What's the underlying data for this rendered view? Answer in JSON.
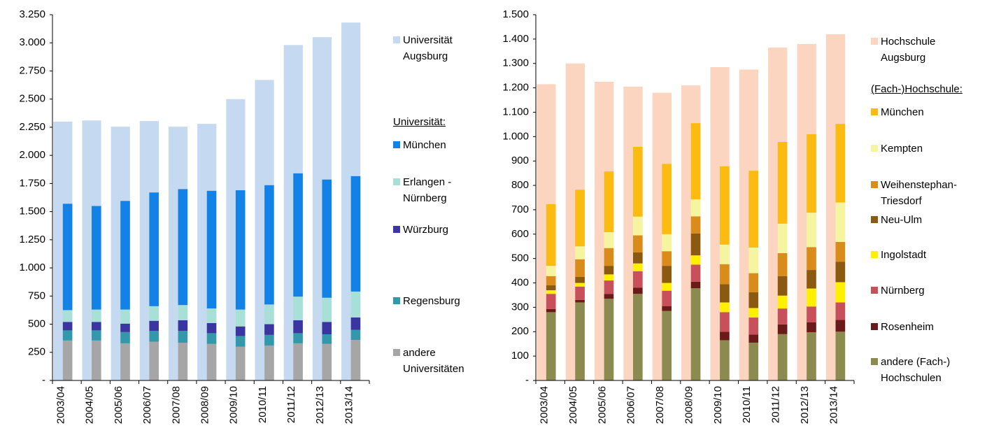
{
  "chart_data": [
    {
      "type": "bar",
      "categories": [
        "2003/04",
        "2004/05",
        "2005/06",
        "2006/07",
        "2007/08",
        "2008/09",
        "2009/10",
        "2010/11",
        "2011/12",
        "2012/13",
        "2013/14"
      ],
      "total_series": {
        "name": "Universität Augsburg",
        "color": "#c5d9f1",
        "values": [
          2300,
          2310,
          2255,
          2305,
          2255,
          2280,
          2500,
          2670,
          2980,
          3050,
          3180
        ]
      },
      "legend_heading": "Universität:",
      "series": [
        {
          "name": "München",
          "color": "#1382e6",
          "values": [
            945,
            920,
            965,
            1010,
            1030,
            1045,
            1060,
            1060,
            1095,
            1050,
            1025
          ]
        },
        {
          "name": "Erlangen - Nürnberg",
          "color": "#a8e0d8",
          "values": [
            105,
            110,
            125,
            130,
            135,
            130,
            150,
            175,
            210,
            215,
            230
          ]
        },
        {
          "name": "Würzburg",
          "color": "#3a35a0",
          "values": [
            75,
            75,
            75,
            90,
            95,
            90,
            85,
            95,
            115,
            110,
            110
          ]
        },
        {
          "name": "Regensburg",
          "color": "#3399aa",
          "values": [
            90,
            90,
            100,
            95,
            105,
            95,
            95,
            95,
            90,
            85,
            90
          ]
        },
        {
          "name": "andere Universitäten",
          "color": "#a6a6a6",
          "values": [
            355,
            355,
            330,
            345,
            335,
            325,
            300,
            310,
            330,
            325,
            360
          ]
        }
      ],
      "ylim": [
        0,
        3250
      ],
      "yticks": [
        {
          "value": 0,
          "label": "-"
        },
        250,
        500,
        750,
        {
          "value": 1000,
          "label": "1.000"
        },
        {
          "value": 1250,
          "label": "1.250"
        },
        {
          "value": 1500,
          "label": "1.500"
        },
        {
          "value": 1750,
          "label": "1.750"
        },
        {
          "value": 2000,
          "label": "2.000"
        },
        {
          "value": 2250,
          "label": "2.250"
        },
        {
          "value": 2500,
          "label": "2.500"
        },
        {
          "value": 2750,
          "label": "2.750"
        },
        {
          "value": 3000,
          "label": "3.000"
        },
        {
          "value": 3250,
          "label": "3.250"
        }
      ]
    },
    {
      "type": "bar",
      "categories": [
        "2003/04",
        "2004/05",
        "2005/06",
        "2006/07",
        "2007/08",
        "2008/09",
        "2009/10",
        "2010/11",
        "2011/12",
        "2012/13",
        "2013/14"
      ],
      "total_series": {
        "name": "Hochschule Augsburg",
        "color": "#fcd5c0",
        "values": [
          1215,
          1300,
          1225,
          1205,
          1180,
          1210,
          1285,
          1275,
          1365,
          1380,
          1420
        ]
      },
      "legend_heading": "(Fach-)Hochschule:",
      "series": [
        {
          "name": "München",
          "color": "#fbbb10",
          "values": [
            253,
            232,
            249,
            286,
            288,
            312,
            321,
            315,
            335,
            322,
            322
          ]
        },
        {
          "name": "Kempten",
          "color": "#f5f5a0",
          "values": [
            42,
            53,
            65,
            77,
            70,
            70,
            80,
            105,
            121,
            141,
            162
          ]
        },
        {
          "name": "Weihenstephan-Triesdorf",
          "color": "#d98c1a",
          "values": [
            38,
            72,
            73,
            70,
            60,
            70,
            82,
            78,
            94,
            94,
            81
          ]
        },
        {
          "name": "Neu-Ulm",
          "color": "#8b5a10",
          "values": [
            20,
            25,
            35,
            45,
            70,
            90,
            75,
            65,
            80,
            76,
            84
          ]
        },
        {
          "name": "Ingolstadt",
          "color": "#fff000",
          "values": [
            15,
            15,
            25,
            32,
            32,
            38,
            40,
            39,
            53,
            74,
            83
          ]
        },
        {
          "name": "Nürnberg",
          "color": "#c8505a",
          "values": [
            62,
            55,
            55,
            68,
            63,
            70,
            80,
            70,
            65,
            65,
            72
          ]
        },
        {
          "name": "Rosenheim",
          "color": "#6b1a1a",
          "values": [
            13,
            10,
            20,
            25,
            20,
            27,
            35,
            33,
            40,
            40,
            48
          ]
        },
        {
          "name": "andere (Fach-) Hochschulen",
          "color": "#8b8b50",
          "values": [
            280,
            320,
            335,
            355,
            285,
            378,
            165,
            155,
            190,
            198,
            200
          ]
        }
      ],
      "ylim": [
        0,
        1500
      ],
      "yticks": [
        {
          "value": 0,
          "label": "-"
        },
        100,
        200,
        300,
        400,
        500,
        600,
        700,
        800,
        900,
        {
          "value": 1000,
          "label": "1.000"
        },
        {
          "value": 1100,
          "label": "1.100"
        },
        {
          "value": 1200,
          "label": "1.200"
        },
        {
          "value": 1300,
          "label": "1.300"
        },
        {
          "value": 1400,
          "label": "1.400"
        },
        {
          "value": 1500,
          "label": "1.500"
        }
      ]
    }
  ]
}
